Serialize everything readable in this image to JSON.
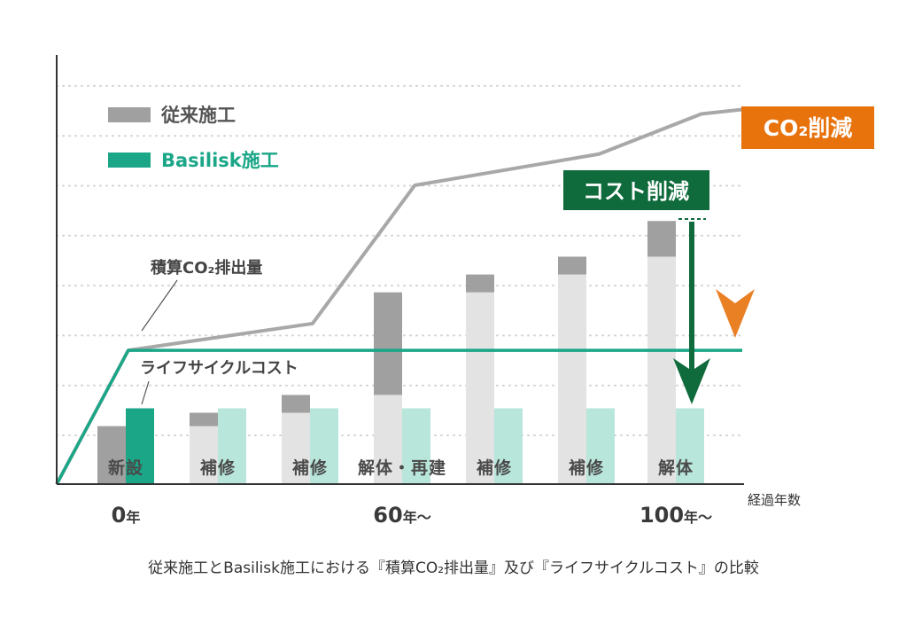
{
  "chart_data": {
    "type": "bar",
    "title": "",
    "xlabel": "経過年数",
    "ylabel": "",
    "ylim": [
      0,
      100
    ],
    "grid": true,
    "categories": [
      "新設",
      "補修",
      "補修",
      "解体・再建",
      "補修",
      "補修",
      "解体"
    ],
    "series": [
      {
        "name": "従来施工",
        "color": "#a0a0a0",
        "lightColor": "#e3e3e3",
        "values": [
          13,
          16,
          20,
          43,
          47,
          51,
          59
        ],
        "highlightFrom": [
          13,
          13,
          16,
          20,
          43,
          47,
          51
        ]
      },
      {
        "name": "Basilisk施工",
        "color": "#1aa687",
        "lightColor": "#b8e6da",
        "values": [
          17,
          17,
          17,
          17,
          17,
          17,
          17
        ],
        "highlightFrom": [
          0,
          17,
          17,
          17,
          17,
          17,
          17
        ]
      }
    ],
    "lines": [
      {
        "name": "積算CO2排出量 (従来施工)",
        "color": "#a8a8a8",
        "x": [
          0,
          7,
          25,
          35,
          53,
          63,
          67
        ],
        "y": [
          0,
          30,
          36,
          67,
          74,
          83,
          84
        ]
      },
      {
        "name": "積算CO2排出量 (Basilisk施工)",
        "color": "#1aa687",
        "x": [
          0,
          7,
          67
        ],
        "y": [
          0,
          30,
          30
        ]
      }
    ],
    "xTicks": [
      {
        "value": "0",
        "unit": "年"
      },
      {
        "value": "60",
        "unit": "年～"
      },
      {
        "value": "100",
        "unit": "年～"
      }
    ],
    "legend": {
      "position": "top-left",
      "items": [
        {
          "label": "従来施工",
          "color": "#a0a0a0"
        },
        {
          "label": "Basilisk施工",
          "color": "#1aa687"
        }
      ]
    },
    "annotations": [
      {
        "text": "積算CO₂排出量",
        "target": "line"
      },
      {
        "text": "ライフサイクルコスト",
        "target": "bar"
      },
      {
        "text": "CO₂削減",
        "color": "#e8720c"
      },
      {
        "text": "コスト削減",
        "color": "#0f6b3c"
      }
    ]
  },
  "caption": "従来施工とBasilisk施工における『積算CO₂排出量』及び『ライフサイクルコスト』の比較"
}
